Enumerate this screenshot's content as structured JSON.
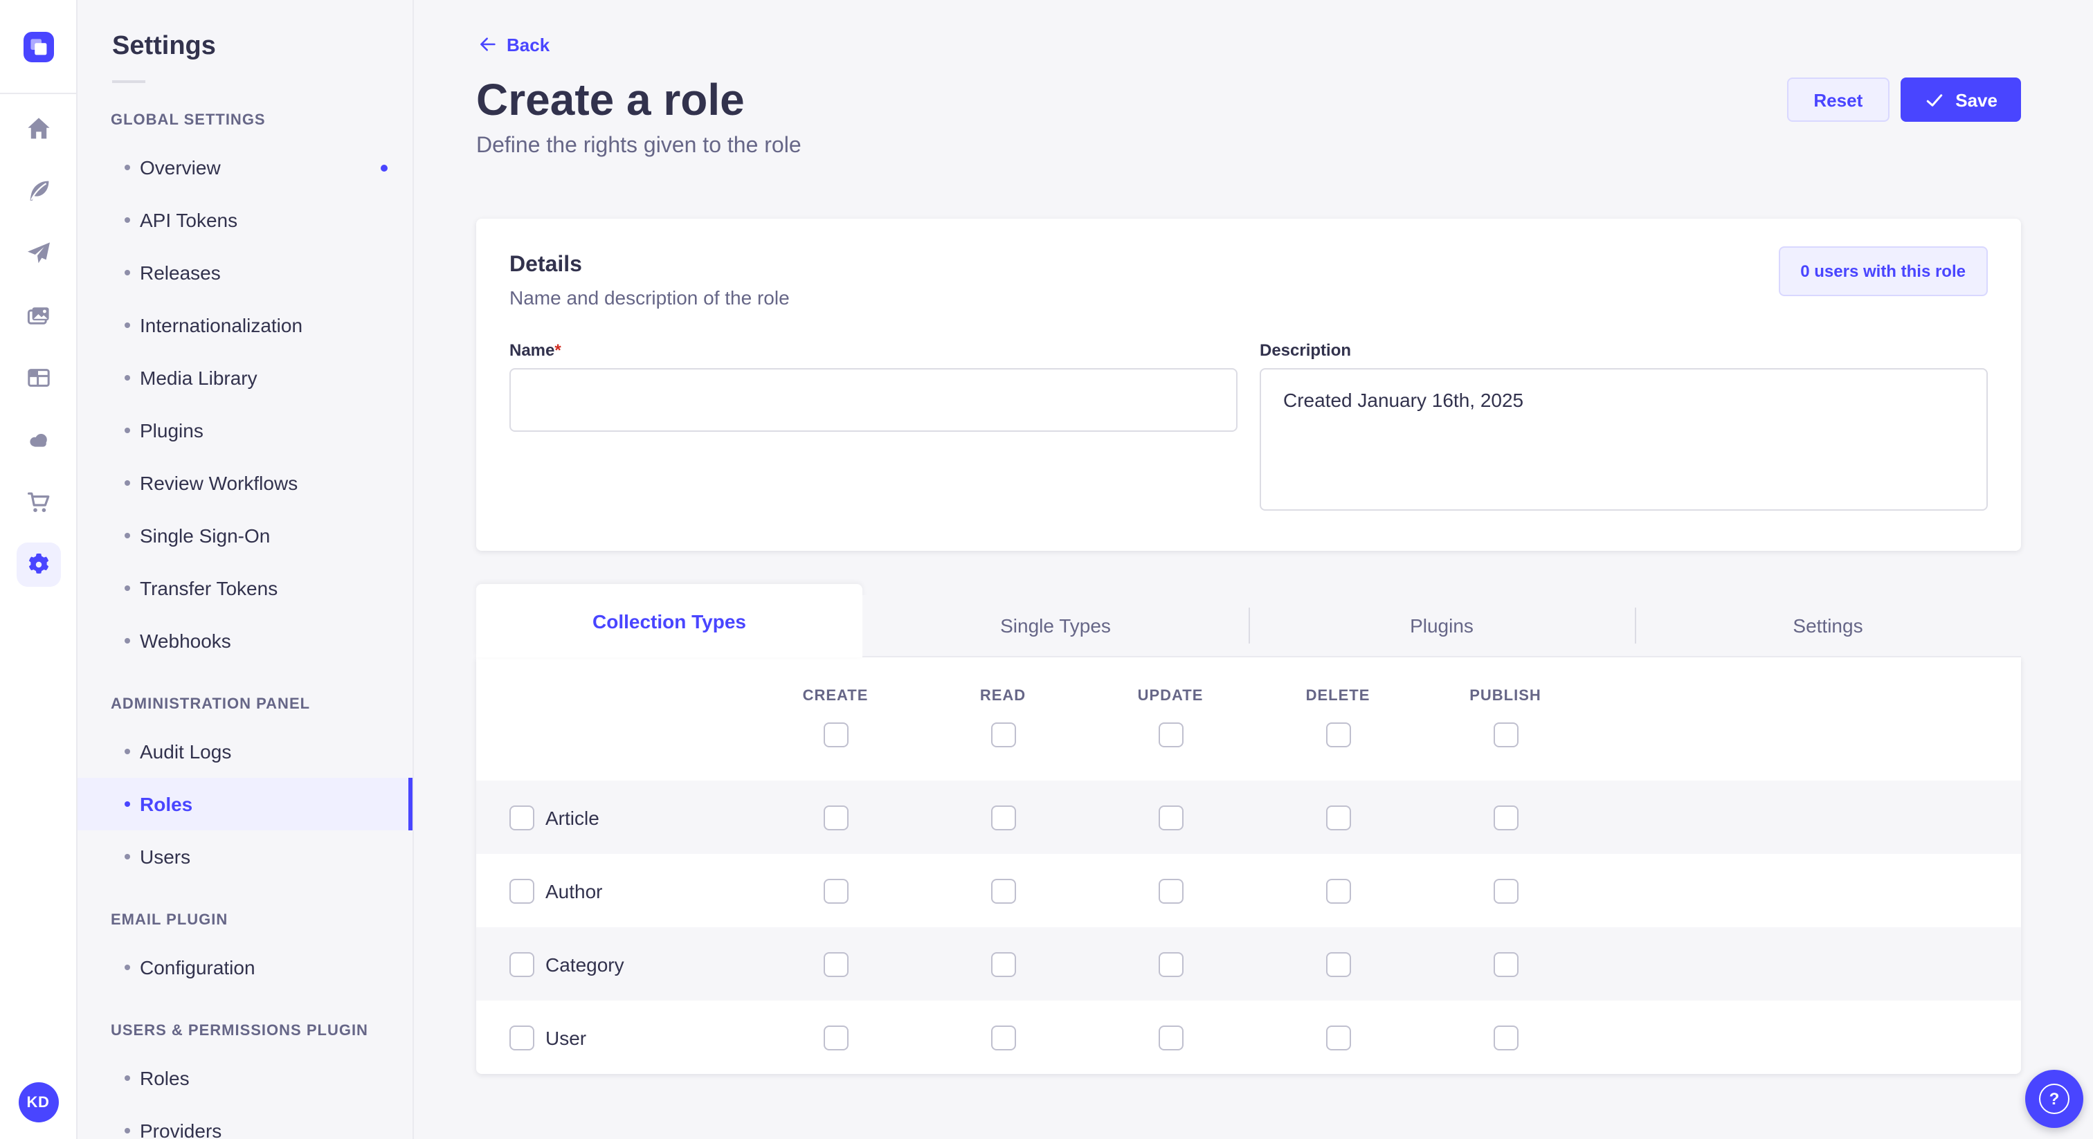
{
  "colors": {
    "accent": "#4945ff",
    "accent_light": "#f0f0ff",
    "accent_border": "#d9d8ff",
    "page_bg": "#f6f6f9",
    "text": "#32324d",
    "text_muted": "#666687",
    "icon_gray": "#8e8ea9",
    "border": "#eaeaef",
    "checkbox_border": "#c0c0cf",
    "required_red": "#d02b20"
  },
  "rail": {
    "logo_icon": "strapi-logo",
    "icons": [
      {
        "name": "home",
        "active": false
      },
      {
        "name": "content-feather",
        "active": false
      },
      {
        "name": "release-paper-plane",
        "active": false
      },
      {
        "name": "media-library-images",
        "active": false
      },
      {
        "name": "content-type-layout",
        "active": false
      },
      {
        "name": "deploy-cloud",
        "active": false
      },
      {
        "name": "marketplace-cart",
        "active": false
      },
      {
        "name": "settings-gear",
        "active": true
      }
    ],
    "avatar_initials": "KD"
  },
  "subnav": {
    "title": "Settings",
    "sections": [
      {
        "label": "GLOBAL SETTINGS",
        "items": [
          {
            "label": "Overview",
            "active": false,
            "notification_dot": true
          },
          {
            "label": "API Tokens",
            "active": false
          },
          {
            "label": "Releases",
            "active": false
          },
          {
            "label": "Internationalization",
            "active": false
          },
          {
            "label": "Media Library",
            "active": false
          },
          {
            "label": "Plugins",
            "active": false
          },
          {
            "label": "Review Workflows",
            "active": false
          },
          {
            "label": "Single Sign-On",
            "active": false
          },
          {
            "label": "Transfer Tokens",
            "active": false
          },
          {
            "label": "Webhooks",
            "active": false
          }
        ]
      },
      {
        "label": "ADMINISTRATION PANEL",
        "items": [
          {
            "label": "Audit Logs",
            "active": false
          },
          {
            "label": "Roles",
            "active": true
          },
          {
            "label": "Users",
            "active": false
          }
        ]
      },
      {
        "label": "EMAIL PLUGIN",
        "items": [
          {
            "label": "Configuration",
            "active": false
          }
        ]
      },
      {
        "label": "USERS & PERMISSIONS PLUGIN",
        "items": [
          {
            "label": "Roles",
            "active": false
          },
          {
            "label": "Providers",
            "active": false
          }
        ]
      }
    ]
  },
  "header": {
    "back": "Back",
    "title": "Create a role",
    "subtitle": "Define the rights given to the role",
    "reset": "Reset",
    "save": "Save"
  },
  "details": {
    "title": "Details",
    "subtitle": "Name and description of the role",
    "users_badge": "0 users with this role",
    "name_label": "Name",
    "required_mark": "*",
    "name_value": "",
    "description_label": "Description",
    "description_value": "Created January 16th, 2025"
  },
  "permissions": {
    "tabs": [
      {
        "label": "Collection Types",
        "active": true
      },
      {
        "label": "Single Types",
        "active": false
      },
      {
        "label": "Plugins",
        "active": false
      },
      {
        "label": "Settings",
        "active": false
      }
    ],
    "columns": [
      "CREATE",
      "READ",
      "UPDATE",
      "DELETE",
      "PUBLISH"
    ],
    "header_checkboxes": [
      false,
      false,
      false,
      false,
      false
    ],
    "rows": [
      {
        "label": "Article",
        "row_checked": false,
        "cells": [
          false,
          false,
          false,
          false,
          false
        ]
      },
      {
        "label": "Author",
        "row_checked": false,
        "cells": [
          false,
          false,
          false,
          false,
          false
        ]
      },
      {
        "label": "Category",
        "row_checked": false,
        "cells": [
          false,
          false,
          false,
          false,
          false
        ]
      },
      {
        "label": "User",
        "row_checked": false,
        "cells": [
          false,
          false,
          false,
          false,
          false
        ]
      }
    ]
  },
  "help": {
    "label": "?"
  }
}
